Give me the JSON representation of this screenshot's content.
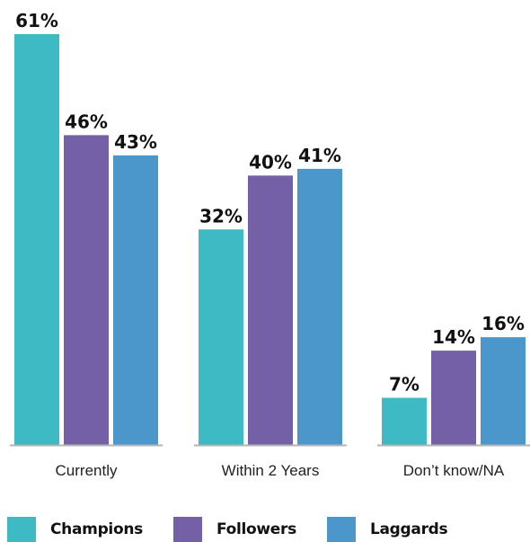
{
  "chart_data": {
    "type": "bar",
    "categories": [
      "Currently",
      "Within 2 Years",
      "Don’t know/NA"
    ],
    "series": [
      {
        "name": "Champions",
        "values": [
          61,
          32,
          7
        ],
        "labels": [
          "61%",
          "32%",
          "7%"
        ],
        "color": "#3dbac3"
      },
      {
        "name": "Followers",
        "values": [
          46,
          40,
          14
        ],
        "labels": [
          "46%",
          "40%",
          "14%"
        ],
        "color": "#7460a7"
      },
      {
        "name": "Laggards",
        "values": [
          43,
          41,
          16
        ],
        "labels": [
          "43%",
          "41%",
          "16%"
        ],
        "color": "#4b97cb"
      }
    ],
    "ylim": [
      0,
      61
    ],
    "grid": false,
    "legend_position": "bottom-left",
    "baseline_color": "#b3b3b3"
  }
}
